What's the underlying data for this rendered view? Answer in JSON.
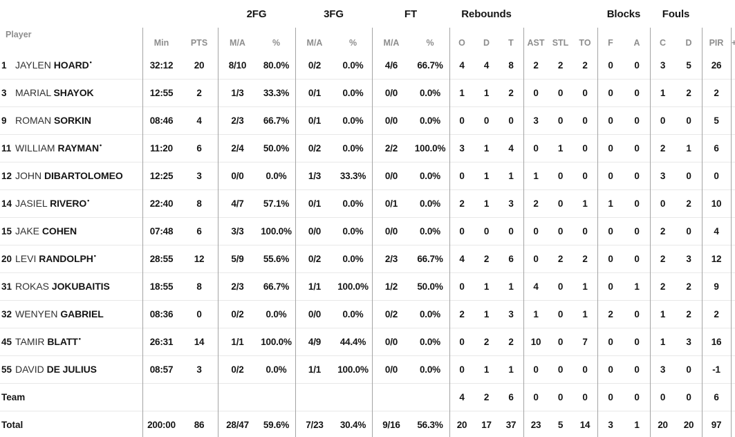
{
  "colors": {
    "background": "#ffffff",
    "text": "#141414",
    "muted_header": "#8d8d8d",
    "column_separator": "#a3a3a3",
    "row_separator": "#e8e8e8"
  },
  "table": {
    "player_header": "Player",
    "column_groups": [
      {
        "label": "2FG"
      },
      {
        "label": "3FG"
      },
      {
        "label": "FT"
      },
      {
        "label": "Rebounds"
      },
      {
        "label": "Blocks"
      },
      {
        "label": "Fouls"
      }
    ],
    "subheaders": [
      "Min",
      "PTS",
      "M/A",
      "%",
      "M/A",
      "%",
      "M/A",
      "%",
      "O",
      "D",
      "T",
      "AST",
      "STL",
      "TO",
      "F",
      "A",
      "C",
      "D",
      "PIR"
    ],
    "plus_minus_header": "+",
    "starter_mark": "•",
    "stat_keys": [
      "min",
      "pts",
      "2fg-ma",
      "2fg-pct",
      "3fg-ma",
      "3fg-pct",
      "ft-ma",
      "ft-pct",
      "reb-o",
      "reb-d",
      "reb-t",
      "ast",
      "stl",
      "to",
      "blk-f",
      "blk-a",
      "foul-c",
      "foul-d",
      "pir"
    ],
    "rows": [
      {
        "num": "1",
        "first": "JAYLEN",
        "last": "HOARD",
        "starter": true,
        "stats": [
          "32:12",
          "20",
          "8/10",
          "80.0%",
          "0/2",
          "0.0%",
          "4/6",
          "66.7%",
          "4",
          "4",
          "8",
          "2",
          "2",
          "2",
          "0",
          "0",
          "3",
          "5",
          "26"
        ]
      },
      {
        "num": "3",
        "first": "MARIAL",
        "last": "SHAYOK",
        "starter": false,
        "stats": [
          "12:55",
          "2",
          "1/3",
          "33.3%",
          "0/1",
          "0.0%",
          "0/0",
          "0.0%",
          "1",
          "1",
          "2",
          "0",
          "0",
          "0",
          "0",
          "0",
          "1",
          "2",
          "2"
        ]
      },
      {
        "num": "9",
        "first": "ROMAN",
        "last": "SORKIN",
        "starter": false,
        "stats": [
          "08:46",
          "4",
          "2/3",
          "66.7%",
          "0/1",
          "0.0%",
          "0/0",
          "0.0%",
          "0",
          "0",
          "0",
          "3",
          "0",
          "0",
          "0",
          "0",
          "0",
          "0",
          "5"
        ]
      },
      {
        "num": "11",
        "first": "WILLIAM",
        "last": "RAYMAN",
        "starter": true,
        "stats": [
          "11:20",
          "6",
          "2/4",
          "50.0%",
          "0/2",
          "0.0%",
          "2/2",
          "100.0%",
          "3",
          "1",
          "4",
          "0",
          "1",
          "0",
          "0",
          "0",
          "2",
          "1",
          "6"
        ]
      },
      {
        "num": "12",
        "first": "JOHN",
        "last": "DIBARTOLOMEO",
        "starter": false,
        "stats": [
          "12:25",
          "3",
          "0/0",
          "0.0%",
          "1/3",
          "33.3%",
          "0/0",
          "0.0%",
          "0",
          "1",
          "1",
          "1",
          "0",
          "0",
          "0",
          "0",
          "3",
          "0",
          "0"
        ]
      },
      {
        "num": "14",
        "first": "JASIEL",
        "last": "RIVERO",
        "starter": true,
        "stats": [
          "22:40",
          "8",
          "4/7",
          "57.1%",
          "0/1",
          "0.0%",
          "0/1",
          "0.0%",
          "2",
          "1",
          "3",
          "2",
          "0",
          "1",
          "1",
          "0",
          "0",
          "2",
          "10"
        ]
      },
      {
        "num": "15",
        "first": "JAKE",
        "last": "COHEN",
        "starter": false,
        "stats": [
          "07:48",
          "6",
          "3/3",
          "100.0%",
          "0/0",
          "0.0%",
          "0/0",
          "0.0%",
          "0",
          "0",
          "0",
          "0",
          "0",
          "0",
          "0",
          "0",
          "2",
          "0",
          "4"
        ]
      },
      {
        "num": "20",
        "first": "LEVI",
        "last": "RANDOLPH",
        "starter": true,
        "stats": [
          "28:55",
          "12",
          "5/9",
          "55.6%",
          "0/2",
          "0.0%",
          "2/3",
          "66.7%",
          "4",
          "2",
          "6",
          "0",
          "2",
          "2",
          "0",
          "0",
          "2",
          "3",
          "12"
        ]
      },
      {
        "num": "31",
        "first": "ROKAS",
        "last": "JOKUBAITIS",
        "starter": false,
        "stats": [
          "18:55",
          "8",
          "2/3",
          "66.7%",
          "1/1",
          "100.0%",
          "1/2",
          "50.0%",
          "0",
          "1",
          "1",
          "4",
          "0",
          "1",
          "0",
          "1",
          "2",
          "2",
          "9"
        ]
      },
      {
        "num": "32",
        "first": "WENYEN",
        "last": "GABRIEL",
        "starter": false,
        "stats": [
          "08:36",
          "0",
          "0/2",
          "0.0%",
          "0/0",
          "0.0%",
          "0/2",
          "0.0%",
          "2",
          "1",
          "3",
          "1",
          "0",
          "1",
          "2",
          "0",
          "1",
          "2",
          "2"
        ]
      },
      {
        "num": "45",
        "first": "TAMIR",
        "last": "BLATT",
        "starter": true,
        "stats": [
          "26:31",
          "14",
          "1/1",
          "100.0%",
          "4/9",
          "44.4%",
          "0/0",
          "0.0%",
          "0",
          "2",
          "2",
          "10",
          "0",
          "7",
          "0",
          "0",
          "1",
          "3",
          "16"
        ]
      },
      {
        "num": "55",
        "first": "DAVID",
        "last": "DE JULIUS",
        "starter": false,
        "stats": [
          "08:57",
          "3",
          "0/2",
          "0.0%",
          "1/1",
          "100.0%",
          "0/0",
          "0.0%",
          "0",
          "1",
          "1",
          "0",
          "0",
          "0",
          "0",
          "0",
          "3",
          "0",
          "-1"
        ]
      }
    ],
    "team_row": {
      "label": "Team",
      "stats": [
        "",
        "",
        "",
        "",
        "",
        "",
        "",
        "",
        "4",
        "2",
        "6",
        "0",
        "0",
        "0",
        "0",
        "0",
        "0",
        "0",
        "6"
      ]
    },
    "total_row": {
      "label": "Total",
      "stats": [
        "200:00",
        "86",
        "28/47",
        "59.6%",
        "7/23",
        "30.4%",
        "9/16",
        "56.3%",
        "20",
        "17",
        "37",
        "23",
        "5",
        "14",
        "3",
        "1",
        "20",
        "20",
        "97"
      ]
    }
  }
}
